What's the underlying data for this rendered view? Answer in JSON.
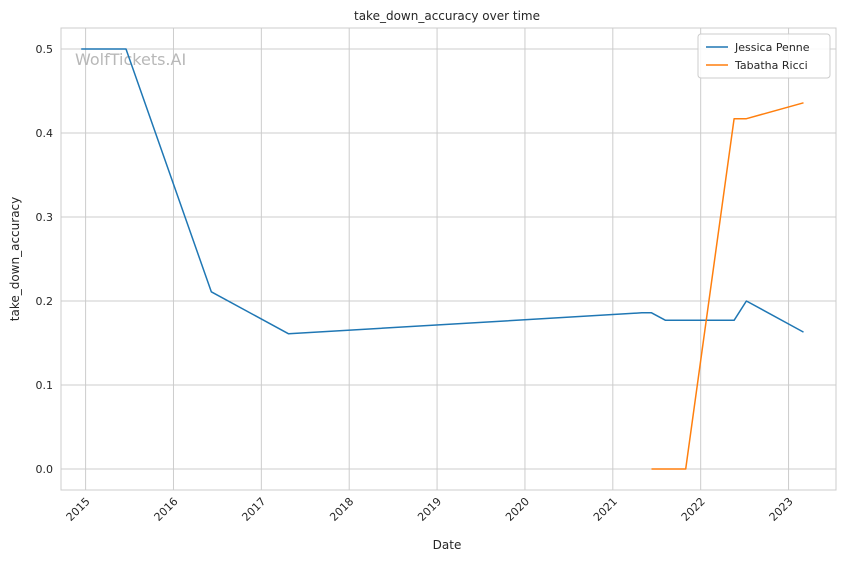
{
  "chart_data": {
    "type": "line",
    "title": "take_down_accuracy over time",
    "xlabel": "Date",
    "ylabel": "take_down_accuracy",
    "watermark": "WolfTickets.AI",
    "xlim": [
      2014.72,
      2023.54
    ],
    "ylim": [
      -0.025,
      0.525
    ],
    "x_ticks": [
      2015,
      2016,
      2017,
      2018,
      2019,
      2020,
      2021,
      2022,
      2023
    ],
    "x_tick_labels": [
      "2015",
      "2016",
      "2017",
      "2018",
      "2019",
      "2020",
      "2021",
      "2022",
      "2023"
    ],
    "y_ticks": [
      0.0,
      0.1,
      0.2,
      0.3,
      0.4,
      0.5
    ],
    "y_tick_labels": [
      "0.0",
      "0.1",
      "0.2",
      "0.3",
      "0.4",
      "0.5"
    ],
    "grid": true,
    "legend_position": "top-right",
    "series": [
      {
        "name": "Jessica Penne",
        "color": "#1f77b4",
        "x": [
          2014.95,
          2015.46,
          2016.43,
          2017.31,
          2021.33,
          2021.44,
          2021.6,
          2022.38,
          2022.52,
          2023.17
        ],
        "y": [
          0.5,
          0.5,
          0.211,
          0.161,
          0.186,
          0.186,
          0.177,
          0.177,
          0.2,
          0.163
        ]
      },
      {
        "name": "Tabatha Ricci",
        "color": "#ff7f0e",
        "x": [
          2021.44,
          2021.83,
          2022.38,
          2022.52,
          2023.17
        ],
        "y": [
          0.0,
          0.0,
          0.417,
          0.417,
          0.436
        ]
      }
    ]
  }
}
